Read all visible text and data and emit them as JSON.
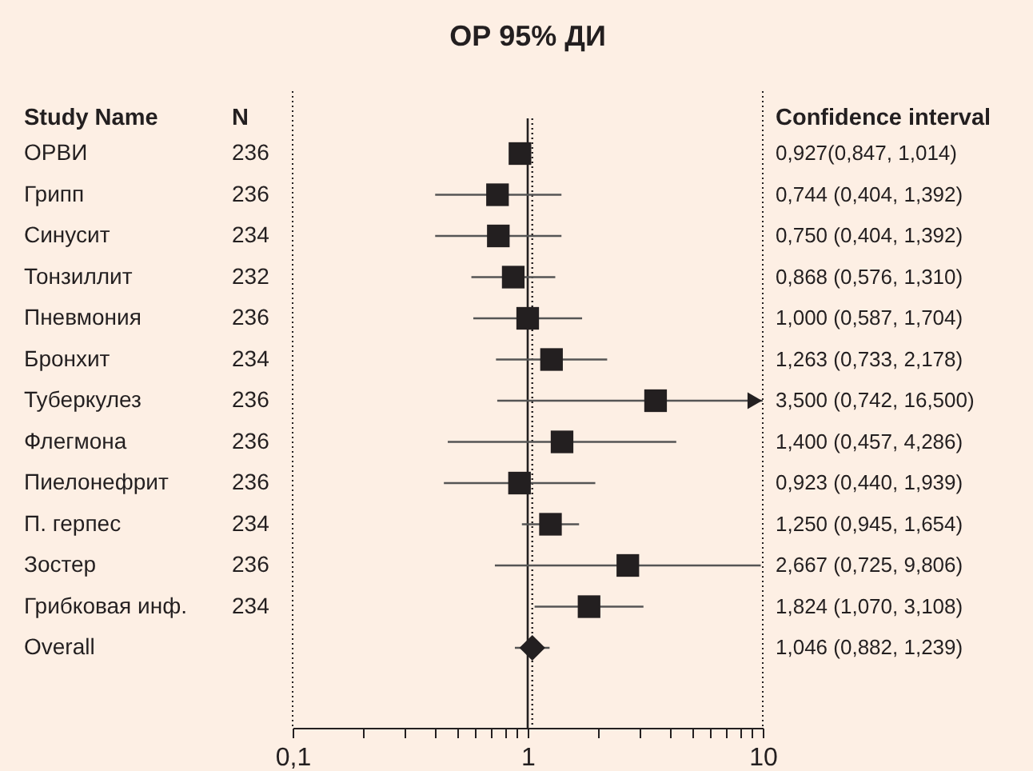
{
  "chart_data": {
    "type": "scatter",
    "orientation": "horizontal",
    "title": "ОР 95% ДИ",
    "ylabel": "Study Name",
    "categories": [
      "ОРВИ",
      "Грипп",
      "Синусит",
      "Тонзиллит",
      "Пневмония",
      "Бронхит",
      "Туберкулез",
      "Флегмона",
      "Пиелонефрит",
      "П. герпес",
      "Зостер",
      "Грибковая инф.",
      "Overall"
    ],
    "series": [
      {
        "color": "#231f20",
        "marker": "square",
        "values": [
          0.927,
          0.744,
          0.75,
          0.868,
          1.0,
          1.263,
          3.5,
          1.4,
          0.923,
          1.25,
          2.667,
          1.824,
          null
        ],
        "errors": [
          [
            0.847,
            1.014
          ],
          [
            0.404,
            1.392
          ],
          [
            0.404,
            1.392
          ],
          [
            0.576,
            1.31
          ],
          [
            0.587,
            1.704
          ],
          [
            0.733,
            2.178
          ],
          [
            0.742,
            16.5
          ],
          [
            0.457,
            4.286
          ],
          [
            0.44,
            1.939
          ],
          [
            0.945,
            1.654
          ],
          [
            0.725,
            9.806
          ],
          [
            1.07,
            3.108
          ],
          null
        ]
      },
      {
        "color": "#231f20",
        "marker": "diamond",
        "values": [
          null,
          null,
          null,
          null,
          null,
          null,
          null,
          null,
          null,
          null,
          null,
          null,
          1.046
        ],
        "errors": [
          null,
          null,
          null,
          null,
          null,
          null,
          null,
          null,
          null,
          null,
          null,
          null,
          [
            0.882,
            1.239
          ]
        ]
      }
    ],
    "annotations": [
      "N",
      "Confidence interval",
      "236",
      "236",
      "234",
      "232",
      "236",
      "234",
      "236",
      "236",
      "236",
      "234",
      "236",
      "234",
      "0,927(0,847, 1,014)",
      "0,744 (0,404, 1,392)",
      "0,750 (0,404, 1,392)",
      "0,868 (0,576, 1,310)",
      "1,000 (0,587, 1,704)",
      "1,263 (0,733, 2,178)",
      "3,500 (0,742, 16,500)",
      "1,400 (0,457, 4,286)",
      "0,923 (0,440, 1,939)",
      "1,250 (0,945, 1,654)",
      "2,667 (0,725, 9,806)",
      "1,824 (1,070, 3,108)",
      "1,046 (0,882, 1,239)"
    ],
    "log": "x",
    "xlim": [
      0.1,
      10
    ],
    "xticks": [
      {
        "value": 0.1,
        "label": "0,1"
      },
      {
        "value": 0.2,
        "label": null
      },
      {
        "value": 0.3,
        "label": null
      },
      {
        "value": 0.4,
        "label": null
      },
      {
        "value": 0.5,
        "label": null
      },
      {
        "value": 0.6,
        "label": null
      },
      {
        "value": 0.7,
        "label": null
      },
      {
        "value": 0.8,
        "label": null
      },
      {
        "value": 0.9,
        "label": null
      },
      1,
      {
        "value": 2,
        "label": null
      },
      {
        "value": 3,
        "label": null
      },
      {
        "value": 4,
        "label": null
      },
      {
        "value": 5,
        "label": null
      },
      {
        "value": 6,
        "label": null
      },
      {
        "value": 7,
        "label": null
      },
      {
        "value": 8,
        "label": null
      },
      {
        "value": 9,
        "label": null
      },
      10
    ],
    "ref_lines": [
      {
        "axis": "x",
        "value": 1,
        "line_style": "solid"
      },
      {
        "axis": "x",
        "value": 1.046,
        "line_style": "dotted"
      }
    ],
    "grid": false
  }
}
